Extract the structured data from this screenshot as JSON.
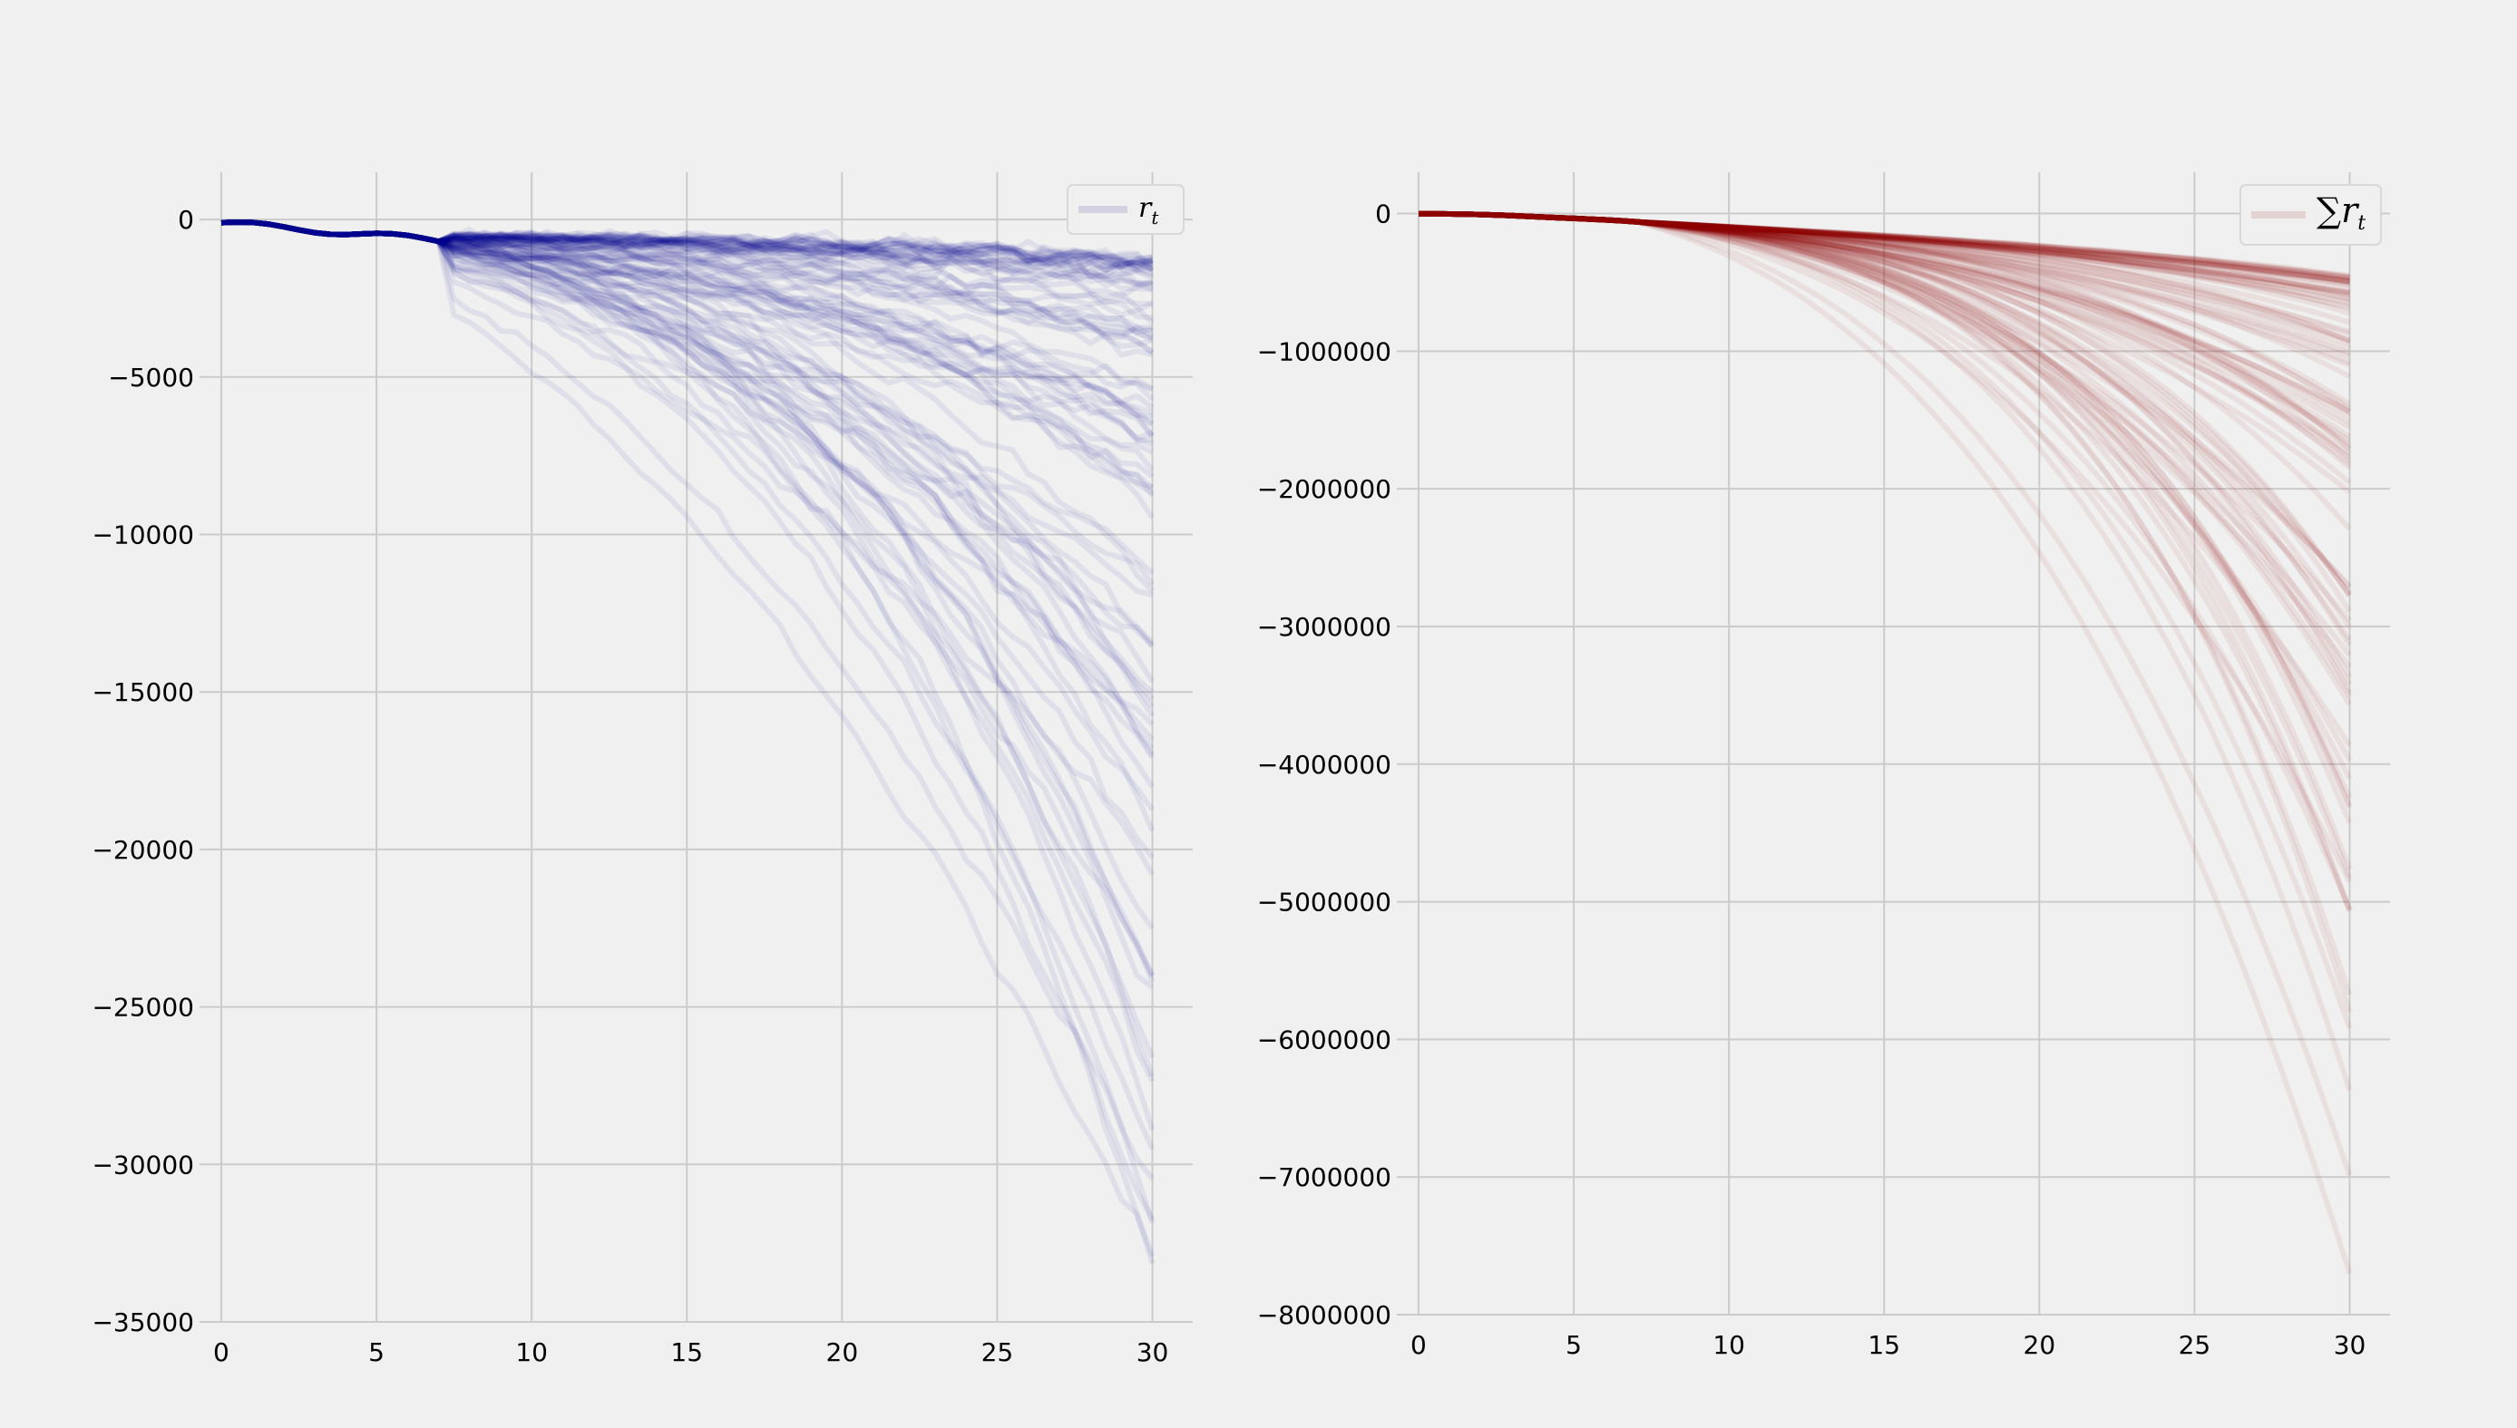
{
  "figure": {
    "background": "#f0f0f0",
    "grid_color": "#cbcbcb"
  },
  "chart_data": [
    {
      "type": "line",
      "title": "",
      "xlabel": "",
      "ylabel": "",
      "xlim": [
        -0.7,
        31.3
      ],
      "ylim": [
        -35000,
        1500
      ],
      "xticks": [
        0,
        5,
        10,
        15,
        20,
        25,
        30
      ],
      "xtick_labels": [
        "0",
        "5",
        "10",
        "15",
        "20",
        "25",
        "30"
      ],
      "yticks": [
        0,
        -5000,
        -10000,
        -15000,
        -20000,
        -25000,
        -30000,
        -35000
      ],
      "ytick_labels": [
        "0",
        "−5000",
        "−10000",
        "−15000",
        "−20000",
        "−25000",
        "−30000",
        "−35000"
      ],
      "grid": true,
      "legend": {
        "position": "top-right",
        "label_base": "r",
        "label_sub": "t"
      },
      "series_color": "#00008b",
      "series_opacity": 0.07,
      "num_series": 100,
      "x_range": [
        0,
        30
      ],
      "final_values_range": [
        -33500,
        -800
      ],
      "series_description": "100 random trajectories r_t over t = 0..30; all start near -100 and diverge downward"
    },
    {
      "type": "line",
      "title": "",
      "xlabel": "",
      "ylabel": "",
      "xlim": [
        -0.7,
        31.3
      ],
      "ylim": [
        -8000000,
        300000
      ],
      "xticks": [
        0,
        5,
        10,
        15,
        20,
        25,
        30
      ],
      "xtick_labels": [
        "0",
        "5",
        "10",
        "15",
        "20",
        "25",
        "30"
      ],
      "yticks": [
        0,
        -1000000,
        -2000000,
        -3000000,
        -4000000,
        -5000000,
        -6000000,
        -7000000,
        -8000000
      ],
      "ytick_labels": [
        "0",
        "−1000000",
        "−2000000",
        "−3000000",
        "−4000000",
        "−5000000",
        "−6000000",
        "−7000000",
        "−8000000"
      ],
      "grid": true,
      "legend": {
        "position": "top-right",
        "label_base": "∑r",
        "label_sub": "t"
      },
      "series_color": "#8b0000",
      "series_opacity": 0.07,
      "num_series": 100,
      "x_range": [
        0,
        30
      ],
      "final_values_range": [
        -7700000,
        -450000
      ],
      "series_description": "cumulative sums of r_t over t = 0..30; start at 0, curve downward"
    }
  ]
}
